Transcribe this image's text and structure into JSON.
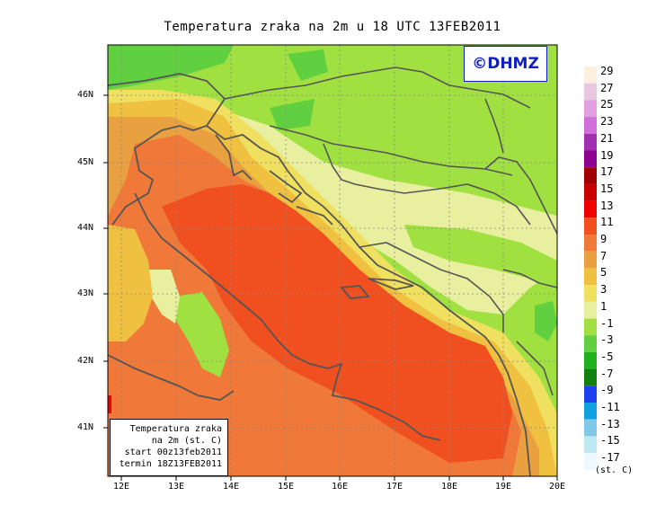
{
  "title": "Temperatura zraka na 2m u 18 UTC 13FEB2011",
  "watermark": "©DHMZ",
  "info_box": {
    "line1": "Temperatura zraka",
    "line2": "na 2m (st. C)",
    "line3": "start 00z13feb2011",
    "line4": "termin 18Z13FEB2011"
  },
  "units": "(st. C)",
  "lat_labels": [
    "46N",
    "45N",
    "44N",
    "43N",
    "42N",
    "41N"
  ],
  "lon_labels": [
    "12E",
    "13E",
    "14E",
    "15E",
    "16E",
    "17E",
    "18E",
    "19E",
    "20E"
  ],
  "legend": {
    "labels": [
      "29",
      "27",
      "25",
      "23",
      "21",
      "19",
      "17",
      "15",
      "13",
      "11",
      "9",
      "7",
      "5",
      "3",
      "1",
      "-1",
      "-3",
      "-5",
      "-7",
      "-9",
      "-11",
      "-13",
      "-15",
      "-17"
    ],
    "colors": [
      "#fdf0e0",
      "#e8c8e0",
      "#e0a0e0",
      "#d070d8",
      "#a030b0",
      "#900090",
      "#a00000",
      "#c80000",
      "#f00000",
      "#f05020",
      "#f07838",
      "#e8a040",
      "#f0c040",
      "#f0e060",
      "#e8f0a0",
      "#a0e040",
      "#60d040",
      "#20b020",
      "#108010",
      "#2040f0",
      "#10a0e0",
      "#80c8e8",
      "#c0e8f0",
      "#f0f8ff"
    ]
  }
}
